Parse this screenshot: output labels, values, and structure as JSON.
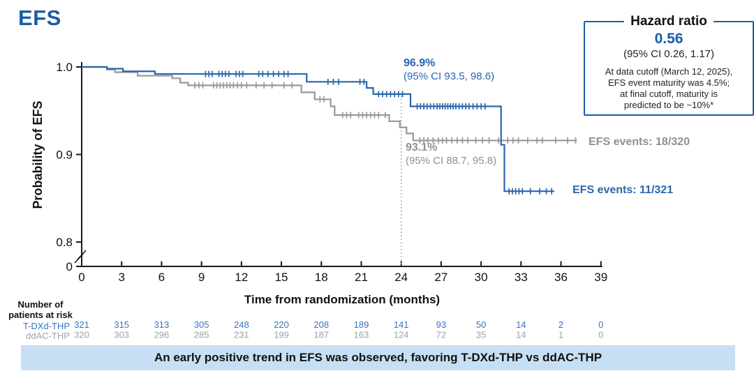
{
  "title": "EFS",
  "colors": {
    "accent_blue": "#1B5CA8",
    "curve_blue": "#2966AD",
    "curve_gray": "#96989A",
    "text_gray": "#8E9092",
    "risk_blue": "#3374BF",
    "risk_gray": "#9FA1A3",
    "banner_bg": "#C7DFF4",
    "axis": "#1a1a1a",
    "ref_line": "#ADADAD"
  },
  "hazard_box": {
    "title": "Hazard ratio",
    "value": "0.56",
    "ci": "(95% CI 0.26, 1.17)",
    "note": "At data cutoff (March 12, 2025),\nEFS event maturity was 4.5%;\nat final cutoff, maturity is\npredicted to be ~10%*"
  },
  "axes": {
    "ylabel": "Probability of EFS",
    "xlabel": "Time from randomization (months)",
    "yticks": [
      {
        "value": 1.0,
        "label": "1.0"
      },
      {
        "value": 0.9,
        "label": "0.9"
      },
      {
        "value": 0.8,
        "label": "0.8"
      },
      {
        "value": 0,
        "label": "0",
        "axis_break_below": true
      }
    ],
    "xticks": [
      0,
      3,
      6,
      9,
      12,
      15,
      18,
      21,
      24,
      27,
      30,
      33,
      36,
      39
    ]
  },
  "risk_table": {
    "heading": "Number of\npatients at risk",
    "rows": [
      {
        "label": "T-DXd-THP",
        "counts": [
          321,
          315,
          313,
          305,
          248,
          220,
          208,
          189,
          141,
          93,
          50,
          14,
          2,
          0
        ]
      },
      {
        "label": "ddAC-THP",
        "counts": [
          320,
          303,
          296,
          285,
          231,
          199,
          187,
          163,
          124,
          72,
          35,
          14,
          1,
          0
        ]
      }
    ]
  },
  "banner_text": "An early positive trend in EFS was observed, favoring T-DXd-THP vs ddAC-THP",
  "chart_data": {
    "type": "line",
    "subtype": "kaplan-meier",
    "title": "EFS",
    "xlabel": "Time from randomization (months)",
    "ylabel": "Probability of EFS",
    "xlim": [
      0,
      39
    ],
    "xtick_interval": 3,
    "y_displayed_ticks": [
      0,
      0.8,
      0.9,
      1.0
    ],
    "y_axis_break": true,
    "grid": false,
    "reference_line_x": 24,
    "series": [
      {
        "name": "T-DXd-THP",
        "color": "#2966AD",
        "steps": [
          [
            0,
            1.0
          ],
          [
            1.9,
            0.998
          ],
          [
            3.1,
            0.995
          ],
          [
            5.5,
            0.992
          ],
          [
            16.9,
            0.983
          ],
          [
            21.4,
            0.976
          ],
          [
            21.9,
            0.969
          ],
          [
            24.7,
            0.955
          ],
          [
            31.5,
            0.911
          ],
          [
            31.75,
            0.858
          ],
          [
            35.5,
            0.858
          ]
        ],
        "censor_months": [
          9.3,
          9.55,
          9.8,
          10.3,
          10.55,
          10.8,
          11.05,
          11.6,
          11.85,
          12.1,
          13.3,
          13.6,
          14.0,
          14.4,
          14.8,
          15.2,
          15.5,
          18.5,
          18.9,
          19.3,
          20.9,
          21.2,
          22.3,
          22.6,
          22.9,
          23.2,
          23.5,
          23.8,
          24.1,
          25.2,
          25.45,
          25.7,
          25.95,
          26.2,
          26.45,
          26.7,
          26.9,
          27.1,
          27.3,
          27.5,
          27.7,
          27.9,
          28.1,
          28.35,
          28.6,
          28.85,
          29.1,
          29.4,
          29.7,
          30.0,
          30.3,
          32.1,
          32.35,
          32.6,
          32.85,
          33.1,
          33.7,
          34.4,
          34.9,
          35.3
        ],
        "landmark_24mo_estimate": "96.9%",
        "landmark_24mo_ci": "(95% CI 93.5, 98.6)",
        "events_label": "EFS events: 11/321"
      },
      {
        "name": "ddAC-THP",
        "color": "#96989A",
        "steps": [
          [
            0,
            1.0
          ],
          [
            1.9,
            0.997
          ],
          [
            2.5,
            0.994
          ],
          [
            4.2,
            0.99
          ],
          [
            6.8,
            0.987
          ],
          [
            7.4,
            0.982
          ],
          [
            8.0,
            0.979
          ],
          [
            16.5,
            0.971
          ],
          [
            17.5,
            0.963
          ],
          [
            18.7,
            0.955
          ],
          [
            19.0,
            0.945
          ],
          [
            23.1,
            0.938
          ],
          [
            23.9,
            0.931
          ],
          [
            24.4,
            0.924
          ],
          [
            24.9,
            0.916
          ],
          [
            37.2,
            0.916
          ]
        ],
        "censor_months": [
          8.5,
          8.8,
          9.1,
          9.9,
          10.15,
          10.4,
          10.65,
          10.9,
          11.15,
          11.4,
          11.7,
          12.0,
          12.4,
          13.1,
          13.7,
          14.3,
          15.2,
          15.8,
          17.9,
          18.2,
          19.6,
          19.9,
          20.2,
          20.8,
          21.1,
          21.4,
          21.7,
          22.0,
          22.3,
          22.8,
          25.4,
          25.7,
          26.0,
          26.4,
          26.8,
          27.1,
          27.4,
          27.8,
          28.2,
          28.6,
          29.0,
          29.6,
          30.1,
          30.6,
          31.3,
          32.0,
          32.4,
          32.8,
          33.5,
          34.2,
          34.6,
          35.6,
          36.5,
          37.1
        ],
        "landmark_24mo_estimate": "93.1%",
        "landmark_24mo_ci": "(95% CI 88.7, 95.8)",
        "events_label": "EFS events: 18/320"
      }
    ],
    "number_at_risk_months": [
      0,
      3,
      6,
      9,
      12,
      15,
      18,
      21,
      24,
      27,
      30,
      33,
      36,
      39
    ]
  }
}
